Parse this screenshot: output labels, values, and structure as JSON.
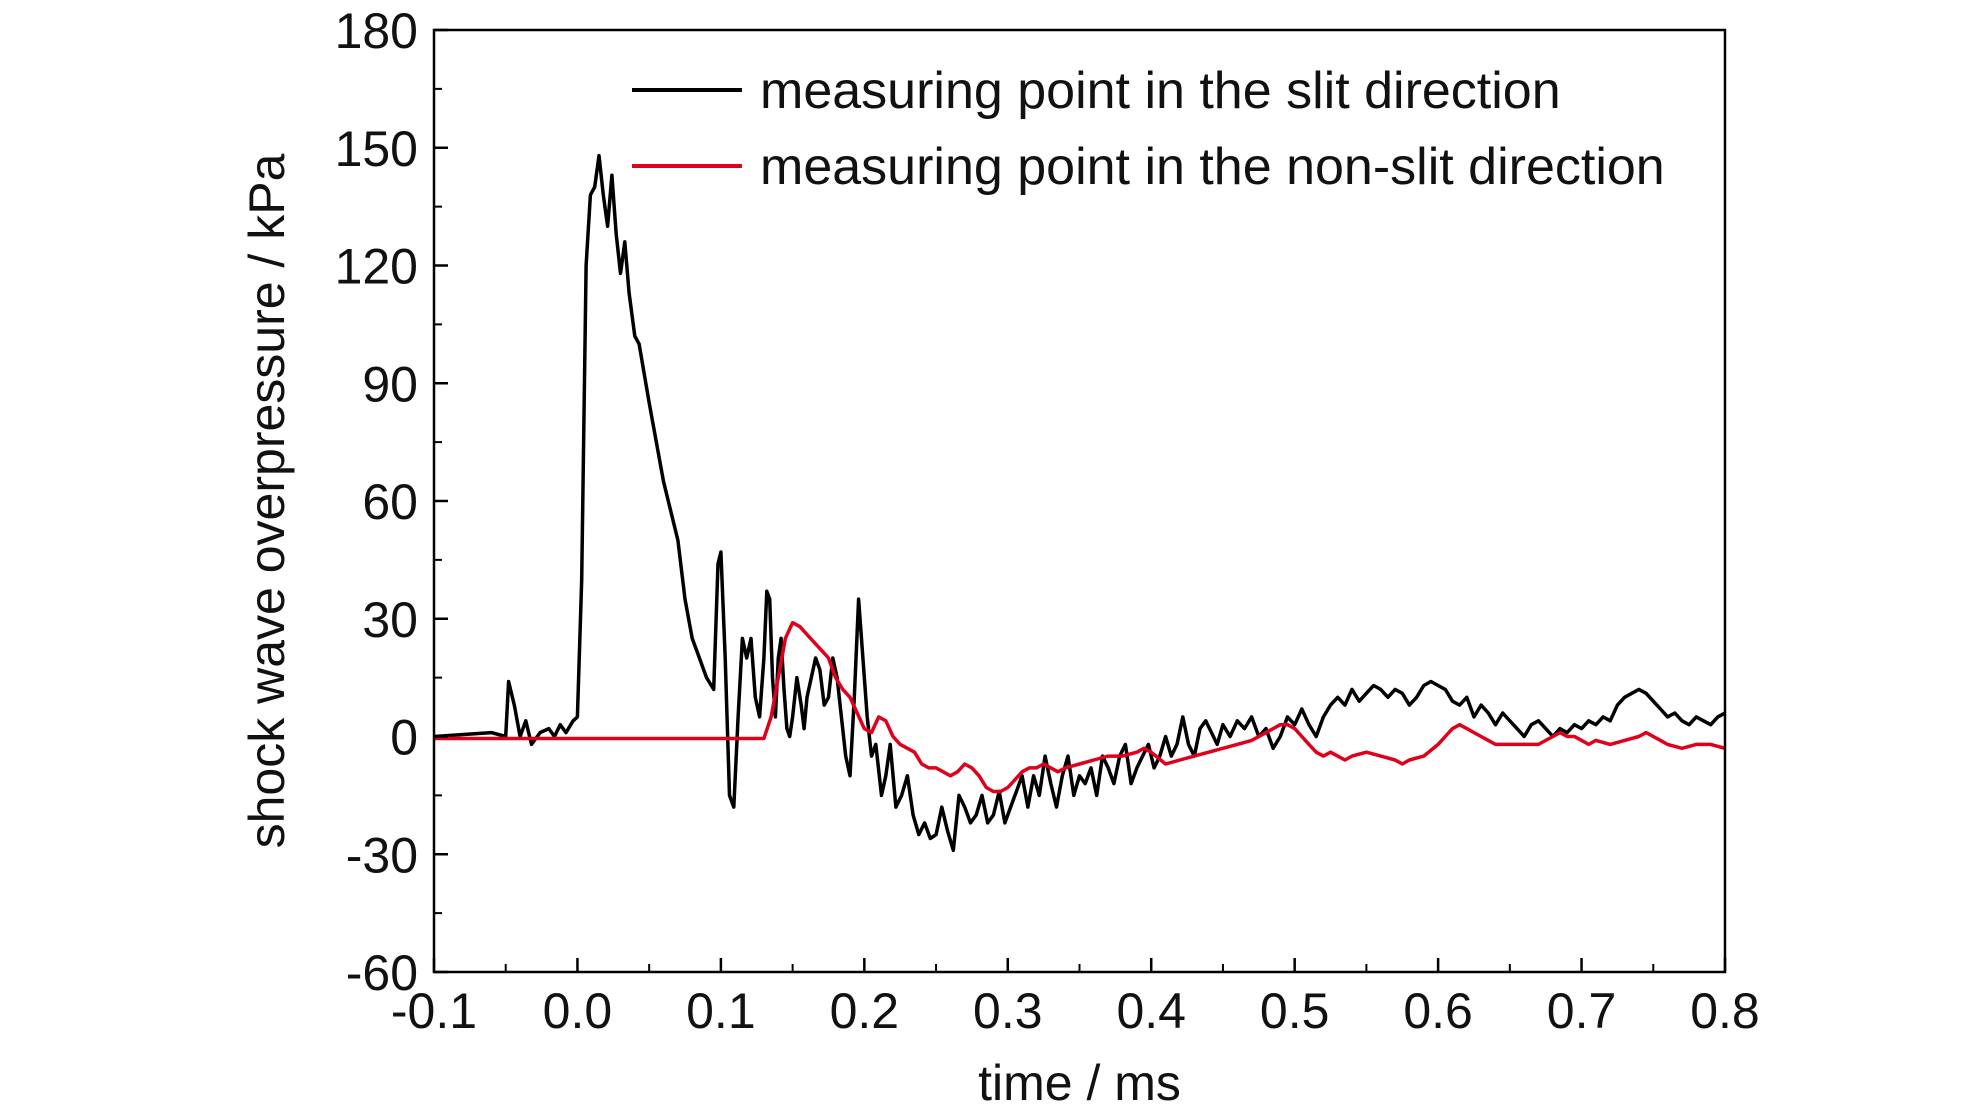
{
  "chart_data": {
    "type": "line",
    "xlabel": "time / ms",
    "ylabel": "shock wave overpressure / kPa",
    "xlim": [
      -0.1,
      0.8
    ],
    "ylim": [
      -60,
      180
    ],
    "xticks": [
      -0.1,
      0.0,
      0.1,
      0.2,
      0.3,
      0.4,
      0.5,
      0.6,
      0.7,
      0.8
    ],
    "xtick_labels": [
      "-0.1",
      "0.0",
      "0.1",
      "0.2",
      "0.3",
      "0.4",
      "0.5",
      "0.6",
      "0.7",
      "0.8"
    ],
    "yticks": [
      -60,
      -30,
      0,
      30,
      60,
      90,
      120,
      150,
      180
    ],
    "ytick_labels": [
      "-60",
      "-30",
      "0",
      "30",
      "60",
      "90",
      "120",
      "150",
      "180"
    ],
    "grid": false,
    "legend_position": "top-right",
    "series": [
      {
        "name": "measuring point in the slit direction",
        "color": "#000000",
        "points": [
          [
            -0.1,
            0
          ],
          [
            -0.06,
            1
          ],
          [
            -0.05,
            0
          ],
          [
            -0.048,
            14
          ],
          [
            -0.044,
            8
          ],
          [
            -0.04,
            0
          ],
          [
            -0.036,
            4
          ],
          [
            -0.032,
            -2
          ],
          [
            -0.026,
            1
          ],
          [
            -0.02,
            2
          ],
          [
            -0.016,
            0
          ],
          [
            -0.012,
            3
          ],
          [
            -0.008,
            1
          ],
          [
            -0.003,
            4
          ],
          [
            0.0,
            5
          ],
          [
            0.003,
            40
          ],
          [
            0.006,
            120
          ],
          [
            0.009,
            138
          ],
          [
            0.012,
            140
          ],
          [
            0.015,
            148
          ],
          [
            0.018,
            138
          ],
          [
            0.021,
            130
          ],
          [
            0.024,
            143
          ],
          [
            0.027,
            128
          ],
          [
            0.03,
            118
          ],
          [
            0.033,
            126
          ],
          [
            0.036,
            113
          ],
          [
            0.04,
            102
          ],
          [
            0.043,
            100
          ],
          [
            0.05,
            85
          ],
          [
            0.06,
            65
          ],
          [
            0.07,
            50
          ],
          [
            0.075,
            35
          ],
          [
            0.08,
            25
          ],
          [
            0.085,
            20
          ],
          [
            0.09,
            15
          ],
          [
            0.095,
            12
          ],
          [
            0.098,
            44
          ],
          [
            0.1,
            47
          ],
          [
            0.103,
            20
          ],
          [
            0.106,
            -15
          ],
          [
            0.109,
            -18
          ],
          [
            0.112,
            5
          ],
          [
            0.115,
            25
          ],
          [
            0.118,
            20
          ],
          [
            0.121,
            25
          ],
          [
            0.124,
            10
          ],
          [
            0.127,
            5
          ],
          [
            0.13,
            20
          ],
          [
            0.132,
            37
          ],
          [
            0.134,
            35
          ],
          [
            0.136,
            15
          ],
          [
            0.138,
            5
          ],
          [
            0.14,
            20
          ],
          [
            0.142,
            25
          ],
          [
            0.144,
            12
          ],
          [
            0.146,
            2
          ],
          [
            0.148,
            0
          ],
          [
            0.15,
            5
          ],
          [
            0.153,
            15
          ],
          [
            0.156,
            8
          ],
          [
            0.158,
            2
          ],
          [
            0.16,
            10
          ],
          [
            0.163,
            15
          ],
          [
            0.166,
            20
          ],
          [
            0.169,
            17
          ],
          [
            0.172,
            8
          ],
          [
            0.175,
            10
          ],
          [
            0.178,
            20
          ],
          [
            0.181,
            15
          ],
          [
            0.184,
            5
          ],
          [
            0.187,
            -5
          ],
          [
            0.19,
            -10
          ],
          [
            0.193,
            10
          ],
          [
            0.196,
            35
          ],
          [
            0.199,
            20
          ],
          [
            0.202,
            5
          ],
          [
            0.205,
            -5
          ],
          [
            0.208,
            -2
          ],
          [
            0.212,
            -15
          ],
          [
            0.215,
            -10
          ],
          [
            0.218,
            -2
          ],
          [
            0.222,
            -18
          ],
          [
            0.226,
            -15
          ],
          [
            0.23,
            -10
          ],
          [
            0.234,
            -20
          ],
          [
            0.238,
            -25
          ],
          [
            0.242,
            -22
          ],
          [
            0.246,
            -26
          ],
          [
            0.25,
            -25
          ],
          [
            0.254,
            -18
          ],
          [
            0.258,
            -24
          ],
          [
            0.262,
            -29
          ],
          [
            0.266,
            -15
          ],
          [
            0.27,
            -18
          ],
          [
            0.274,
            -22
          ],
          [
            0.278,
            -20
          ],
          [
            0.282,
            -15
          ],
          [
            0.286,
            -22
          ],
          [
            0.29,
            -20
          ],
          [
            0.294,
            -14
          ],
          [
            0.298,
            -22
          ],
          [
            0.302,
            -18
          ],
          [
            0.306,
            -14
          ],
          [
            0.31,
            -10
          ],
          [
            0.314,
            -18
          ],
          [
            0.318,
            -10
          ],
          [
            0.322,
            -15
          ],
          [
            0.326,
            -5
          ],
          [
            0.33,
            -12
          ],
          [
            0.334,
            -18
          ],
          [
            0.338,
            -10
          ],
          [
            0.342,
            -5
          ],
          [
            0.346,
            -15
          ],
          [
            0.35,
            -10
          ],
          [
            0.354,
            -12
          ],
          [
            0.358,
            -8
          ],
          [
            0.362,
            -15
          ],
          [
            0.366,
            -5
          ],
          [
            0.37,
            -8
          ],
          [
            0.374,
            -12
          ],
          [
            0.378,
            -5
          ],
          [
            0.382,
            -2
          ],
          [
            0.386,
            -12
          ],
          [
            0.39,
            -8
          ],
          [
            0.394,
            -5
          ],
          [
            0.398,
            -2
          ],
          [
            0.402,
            -8
          ],
          [
            0.406,
            -5
          ],
          [
            0.41,
            0
          ],
          [
            0.414,
            -5
          ],
          [
            0.418,
            -2
          ],
          [
            0.422,
            5
          ],
          [
            0.426,
            -2
          ],
          [
            0.43,
            -5
          ],
          [
            0.434,
            2
          ],
          [
            0.438,
            4
          ],
          [
            0.442,
            1
          ],
          [
            0.446,
            -2
          ],
          [
            0.45,
            3
          ],
          [
            0.455,
            0
          ],
          [
            0.46,
            4
          ],
          [
            0.465,
            2
          ],
          [
            0.47,
            5
          ],
          [
            0.475,
            0
          ],
          [
            0.48,
            2
          ],
          [
            0.485,
            -3
          ],
          [
            0.49,
            0
          ],
          [
            0.495,
            5
          ],
          [
            0.5,
            3
          ],
          [
            0.505,
            7
          ],
          [
            0.51,
            3
          ],
          [
            0.515,
            0
          ],
          [
            0.52,
            5
          ],
          [
            0.525,
            8
          ],
          [
            0.53,
            10
          ],
          [
            0.535,
            8
          ],
          [
            0.54,
            12
          ],
          [
            0.545,
            9
          ],
          [
            0.55,
            11
          ],
          [
            0.555,
            13
          ],
          [
            0.56,
            12
          ],
          [
            0.565,
            10
          ],
          [
            0.57,
            12
          ],
          [
            0.575,
            11
          ],
          [
            0.58,
            8
          ],
          [
            0.585,
            10
          ],
          [
            0.59,
            13
          ],
          [
            0.595,
            14
          ],
          [
            0.6,
            13
          ],
          [
            0.605,
            12
          ],
          [
            0.61,
            9
          ],
          [
            0.615,
            8
          ],
          [
            0.62,
            10
          ],
          [
            0.625,
            5
          ],
          [
            0.63,
            8
          ],
          [
            0.635,
            6
          ],
          [
            0.64,
            3
          ],
          [
            0.645,
            6
          ],
          [
            0.65,
            4
          ],
          [
            0.655,
            2
          ],
          [
            0.66,
            0
          ],
          [
            0.665,
            3
          ],
          [
            0.67,
            4
          ],
          [
            0.675,
            2
          ],
          [
            0.68,
            0
          ],
          [
            0.685,
            2
          ],
          [
            0.69,
            1
          ],
          [
            0.695,
            3
          ],
          [
            0.7,
            2
          ],
          [
            0.705,
            4
          ],
          [
            0.71,
            3
          ],
          [
            0.715,
            5
          ],
          [
            0.72,
            4
          ],
          [
            0.725,
            8
          ],
          [
            0.73,
            10
          ],
          [
            0.735,
            11
          ],
          [
            0.74,
            12
          ],
          [
            0.745,
            11
          ],
          [
            0.75,
            9
          ],
          [
            0.755,
            7
          ],
          [
            0.76,
            5
          ],
          [
            0.765,
            6
          ],
          [
            0.77,
            4
          ],
          [
            0.775,
            3
          ],
          [
            0.78,
            5
          ],
          [
            0.785,
            4
          ],
          [
            0.79,
            3
          ],
          [
            0.795,
            5
          ],
          [
            0.8,
            6
          ]
        ]
      },
      {
        "name": "measuring point in the non-slit direction",
        "color": "#e0001b",
        "points": [
          [
            -0.1,
            -0.5
          ],
          [
            -0.05,
            -0.5
          ],
          [
            0.0,
            -0.5
          ],
          [
            0.05,
            -0.5
          ],
          [
            0.1,
            -0.5
          ],
          [
            0.13,
            -0.5
          ],
          [
            0.135,
            5
          ],
          [
            0.14,
            15
          ],
          [
            0.145,
            25
          ],
          [
            0.15,
            29
          ],
          [
            0.155,
            28
          ],
          [
            0.16,
            26
          ],
          [
            0.165,
            24
          ],
          [
            0.17,
            22
          ],
          [
            0.175,
            20
          ],
          [
            0.18,
            15
          ],
          [
            0.185,
            12
          ],
          [
            0.19,
            10
          ],
          [
            0.195,
            6
          ],
          [
            0.2,
            2
          ],
          [
            0.205,
            1
          ],
          [
            0.21,
            5
          ],
          [
            0.215,
            4
          ],
          [
            0.22,
            0
          ],
          [
            0.225,
            -2
          ],
          [
            0.23,
            -3
          ],
          [
            0.235,
            -4
          ],
          [
            0.24,
            -7
          ],
          [
            0.245,
            -8
          ],
          [
            0.25,
            -8
          ],
          [
            0.255,
            -9
          ],
          [
            0.26,
            -10
          ],
          [
            0.265,
            -9
          ],
          [
            0.27,
            -7
          ],
          [
            0.275,
            -8
          ],
          [
            0.28,
            -10
          ],
          [
            0.285,
            -13
          ],
          [
            0.29,
            -14
          ],
          [
            0.295,
            -14
          ],
          [
            0.3,
            -13
          ],
          [
            0.305,
            -11
          ],
          [
            0.31,
            -9
          ],
          [
            0.315,
            -8
          ],
          [
            0.32,
            -8
          ],
          [
            0.325,
            -7
          ],
          [
            0.33,
            -8
          ],
          [
            0.335,
            -9
          ],
          [
            0.34,
            -8
          ],
          [
            0.35,
            -7
          ],
          [
            0.36,
            -6
          ],
          [
            0.37,
            -5
          ],
          [
            0.38,
            -5
          ],
          [
            0.39,
            -4
          ],
          [
            0.395,
            -3
          ],
          [
            0.4,
            -4
          ],
          [
            0.41,
            -7
          ],
          [
            0.42,
            -6
          ],
          [
            0.43,
            -5
          ],
          [
            0.44,
            -4
          ],
          [
            0.45,
            -3
          ],
          [
            0.46,
            -2
          ],
          [
            0.47,
            -1
          ],
          [
            0.475,
            0
          ],
          [
            0.48,
            1
          ],
          [
            0.485,
            2
          ],
          [
            0.49,
            3
          ],
          [
            0.495,
            3
          ],
          [
            0.5,
            2
          ],
          [
            0.505,
            0
          ],
          [
            0.51,
            -2
          ],
          [
            0.515,
            -4
          ],
          [
            0.52,
            -5
          ],
          [
            0.525,
            -4
          ],
          [
            0.53,
            -5
          ],
          [
            0.535,
            -6
          ],
          [
            0.54,
            -5
          ],
          [
            0.55,
            -4
          ],
          [
            0.56,
            -5
          ],
          [
            0.57,
            -6
          ],
          [
            0.575,
            -7
          ],
          [
            0.58,
            -6
          ],
          [
            0.59,
            -5
          ],
          [
            0.6,
            -2
          ],
          [
            0.605,
            0
          ],
          [
            0.61,
            2
          ],
          [
            0.615,
            3
          ],
          [
            0.62,
            2
          ],
          [
            0.625,
            1
          ],
          [
            0.63,
            0
          ],
          [
            0.635,
            -1
          ],
          [
            0.64,
            -2
          ],
          [
            0.65,
            -2
          ],
          [
            0.66,
            -2
          ],
          [
            0.67,
            -2
          ],
          [
            0.675,
            -1
          ],
          [
            0.68,
            0
          ],
          [
            0.685,
            1
          ],
          [
            0.69,
            0
          ],
          [
            0.695,
            0
          ],
          [
            0.7,
            -1
          ],
          [
            0.705,
            -2
          ],
          [
            0.71,
            -1
          ],
          [
            0.72,
            -2
          ],
          [
            0.73,
            -1
          ],
          [
            0.74,
            0
          ],
          [
            0.745,
            1
          ],
          [
            0.75,
            0
          ],
          [
            0.755,
            -1
          ],
          [
            0.76,
            -2
          ],
          [
            0.77,
            -3
          ],
          [
            0.78,
            -2
          ],
          [
            0.79,
            -2
          ],
          [
            0.8,
            -3
          ]
        ]
      }
    ]
  }
}
